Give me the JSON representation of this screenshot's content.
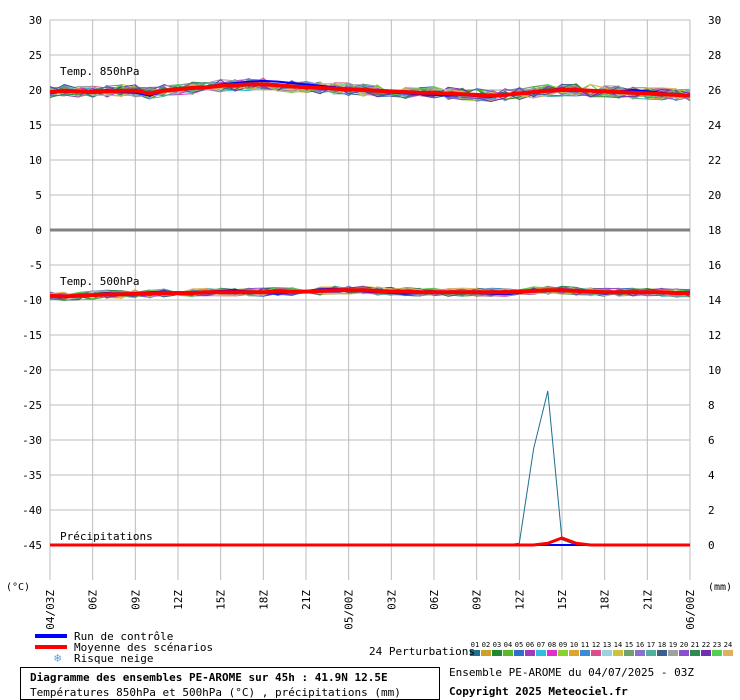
{
  "chart_data": {
    "type": "line",
    "y_left": {
      "ticks": [
        30,
        25,
        20,
        15,
        10,
        5,
        0,
        -5,
        -10,
        -15,
        -20,
        -25,
        -30,
        -35,
        -40,
        -45
      ],
      "range": [
        -50,
        30
      ],
      "unit_label": "(°C)"
    },
    "y_right": {
      "ticks": [
        30,
        28,
        26,
        24,
        22,
        20,
        18,
        16,
        14,
        12,
        10,
        8,
        6,
        4,
        2,
        0
      ],
      "unit_label": "(mm)"
    },
    "x_ticks": [
      "04/03Z",
      "06Z",
      "09Z",
      "12Z",
      "15Z",
      "18Z",
      "21Z",
      "05/00Z",
      "03Z",
      "06Z",
      "09Z",
      "12Z",
      "15Z",
      "18Z",
      "21Z",
      "06/00Z"
    ],
    "x_tick_hours": [
      0,
      3,
      6,
      9,
      12,
      15,
      18,
      21,
      24,
      27,
      30,
      33,
      36,
      39,
      42,
      45
    ],
    "grid": true,
    "panels": [
      {
        "label": "Temp. 850hPa",
        "unit": "°C"
      },
      {
        "label": "Temp. 500hPa",
        "unit": "°C"
      },
      {
        "label": "Précipitations",
        "unit": "mm"
      }
    ],
    "hours": [
      0,
      1,
      2,
      3,
      4,
      5,
      6,
      7,
      8,
      9,
      10,
      11,
      12,
      13,
      14,
      15,
      16,
      17,
      18,
      19,
      20,
      21,
      22,
      23,
      24,
      25,
      26,
      27,
      28,
      29,
      30,
      31,
      32,
      33,
      34,
      35,
      36,
      37,
      38,
      39,
      40,
      41,
      42,
      43,
      44,
      45
    ],
    "series": [
      {
        "name": "Run de contrôle",
        "t850": [
          19.5,
          19.8,
          19.6,
          19.9,
          20.0,
          19.7,
          19.6,
          19.2,
          19.8,
          20.1,
          20.3,
          20.5,
          20.8,
          21.0,
          21.2,
          21.3,
          21.2,
          21.0,
          20.8,
          20.6,
          20.4,
          20.2,
          20.0,
          19.8,
          19.6,
          19.5,
          19.4,
          19.3,
          19.2,
          19.3,
          19.1,
          19.0,
          19.2,
          19.5,
          19.8,
          20.0,
          20.2,
          20.1,
          19.9,
          19.7,
          19.8,
          20.0,
          19.8,
          19.6,
          19.4,
          19.2
        ],
        "t500": [
          -9.4,
          -9.6,
          -9.3,
          -9.2,
          -9.0,
          -9.1,
          -9.0,
          -8.9,
          -8.8,
          -8.9,
          -9.0,
          -8.8,
          -8.7,
          -8.6,
          -8.8,
          -9.0,
          -9.1,
          -8.9,
          -8.7,
          -8.5,
          -8.4,
          -8.6,
          -8.8,
          -8.9,
          -9.0,
          -9.1,
          -9.0,
          -8.9,
          -8.8,
          -8.9,
          -9.0,
          -9.1,
          -9.2,
          -9.0,
          -8.8,
          -8.6,
          -8.5,
          -8.7,
          -8.9,
          -9.1,
          -9.0,
          -8.9,
          -8.8,
          -8.9,
          -9.0,
          -9.1
        ],
        "precip": [
          0,
          0,
          0,
          0,
          0,
          0,
          0,
          0,
          0,
          0,
          0,
          0,
          0,
          0,
          0,
          0,
          0,
          0,
          0,
          0,
          0,
          0,
          0,
          0,
          0,
          0,
          0,
          0,
          0,
          0,
          0,
          0,
          0,
          0,
          0,
          0,
          0,
          0,
          0,
          0,
          0,
          0,
          0,
          0,
          0,
          0
        ]
      },
      {
        "name": "Moyenne des scénarios",
        "t850": [
          19.7,
          19.9,
          19.8,
          19.7,
          19.8,
          19.9,
          19.9,
          19.5,
          19.9,
          20.1,
          20.3,
          20.4,
          20.6,
          20.7,
          20.8,
          20.8,
          20.7,
          20.5,
          20.4,
          20.3,
          20.2,
          20.1,
          20.0,
          19.9,
          19.8,
          19.7,
          19.6,
          19.6,
          19.5,
          19.4,
          19.3,
          19.2,
          19.3,
          19.5,
          19.7,
          19.9,
          20.0,
          20.0,
          19.9,
          19.8,
          19.7,
          19.6,
          19.5,
          19.4,
          19.3,
          19.2
        ],
        "t500": [
          -9.4,
          -9.5,
          -9.4,
          -9.3,
          -9.2,
          -9.2,
          -9.1,
          -9.1,
          -9.0,
          -9.0,
          -9.0,
          -8.9,
          -8.9,
          -8.9,
          -8.9,
          -8.9,
          -8.8,
          -8.8,
          -8.8,
          -8.7,
          -8.6,
          -8.6,
          -8.6,
          -8.7,
          -8.8,
          -8.8,
          -8.9,
          -8.9,
          -8.9,
          -8.9,
          -8.9,
          -8.9,
          -8.9,
          -8.8,
          -8.7,
          -8.6,
          -8.6,
          -8.7,
          -8.8,
          -8.9,
          -8.9,
          -8.9,
          -8.9,
          -8.9,
          -9.0,
          -9.0
        ],
        "precip": [
          0,
          0,
          0,
          0,
          0,
          0,
          0,
          0,
          0,
          0,
          0,
          0,
          0,
          0,
          0,
          0,
          0,
          0,
          0,
          0,
          0,
          0,
          0,
          0,
          0,
          0,
          0,
          0,
          0,
          0,
          0,
          0,
          0,
          0,
          0,
          0.1,
          0.4,
          0.1,
          0,
          0,
          0,
          0,
          0,
          0,
          0,
          0
        ]
      }
    ],
    "perturbations": {
      "count_label": "24 Perturbations",
      "labels": [
        "01",
        "02",
        "03",
        "04",
        "05",
        "06",
        "07",
        "08",
        "09",
        "10",
        "11",
        "12",
        "13",
        "14",
        "15",
        "16",
        "17",
        "18",
        "19",
        "20",
        "21",
        "22",
        "23",
        "24"
      ],
      "colors": [
        "#1f6f8f",
        "#c9a227",
        "#1c8a2e",
        "#5ab82b",
        "#2f6fd0",
        "#a33ab8",
        "#2fbde0",
        "#e02fd0",
        "#8ad02f",
        "#e0a32f",
        "#3f8ad8",
        "#d84f8a",
        "#9ad0e0",
        "#d0c040",
        "#6fa06f",
        "#8a6fd0",
        "#4fb0a0",
        "#3a5f8a",
        "#a0a0a0",
        "#8a4fd0",
        "#2f8a4f",
        "#6f2fb0",
        "#50d050",
        "#e0b060"
      ]
    }
  },
  "legend": {
    "control": {
      "label": "Run de contrôle",
      "color": "#0000ff"
    },
    "mean": {
      "label": "Moyenne des scénarios",
      "color": "#ff0000"
    },
    "snow": {
      "label": "Risque neige",
      "icon": "snowflake-icon",
      "glyph": "❄",
      "color": "#5aa0e0"
    }
  },
  "info": {
    "title": "Diagramme des ensembles PE-AROME sur 45h : 41.9N 12.5E",
    "subtitle": "Températures 850hPa et 500hPa (°C) , précipitations (mm)",
    "ensemble": "Ensemble PE-AROME du 04/07/2025 - 03Z",
    "copyright": "Copyright 2025 Meteociel.fr"
  }
}
